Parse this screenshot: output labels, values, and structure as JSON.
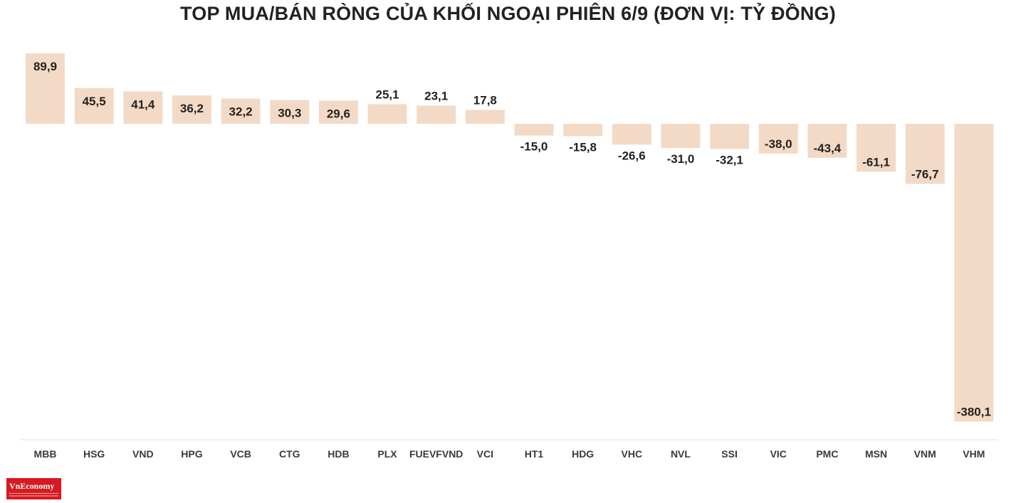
{
  "colors": {
    "bar": "#f3dac6",
    "axis": "#e2e2e2",
    "text": "#222222",
    "logo": "#d71920"
  },
  "logo": {
    "text": "VnEconomy"
  },
  "chart_data": {
    "type": "bar",
    "title": "TOP MUA/BÁN RÒNG CỦA KHỐI NGOẠI PHIÊN 6/9 (ĐƠN VỊ: TỶ ĐỒNG)",
    "categories": [
      "MBB",
      "HSG",
      "VND",
      "HPG",
      "VCB",
      "CTG",
      "HDB",
      "PLX",
      "FUEVFVND",
      "VCI",
      "HT1",
      "HDG",
      "VHC",
      "NVL",
      "SSI",
      "VIC",
      "PMC",
      "MSN",
      "VNM",
      "VHM"
    ],
    "values": [
      89.9,
      45.5,
      41.4,
      36.2,
      32.2,
      30.3,
      29.6,
      25.1,
      23.1,
      17.8,
      -15.0,
      -15.8,
      -26.6,
      -31.0,
      -32.1,
      -38.0,
      -43.4,
      -61.1,
      -76.7,
      -380.1
    ],
    "labels": [
      "89,9",
      "45,5",
      "41,4",
      "36,2",
      "32,2",
      "30,3",
      "29,6",
      "25,1",
      "23,1",
      "17,8",
      "-15,0",
      "-15,8",
      "-26,6",
      "-31,0",
      "-32,1",
      "-38,0",
      "-43,4",
      "-61,1",
      "-76,7",
      "-380,1"
    ],
    "ylim": [
      -380.1,
      89.9
    ],
    "grid": false,
    "legend": "none",
    "xlabel": "",
    "ylabel": ""
  }
}
